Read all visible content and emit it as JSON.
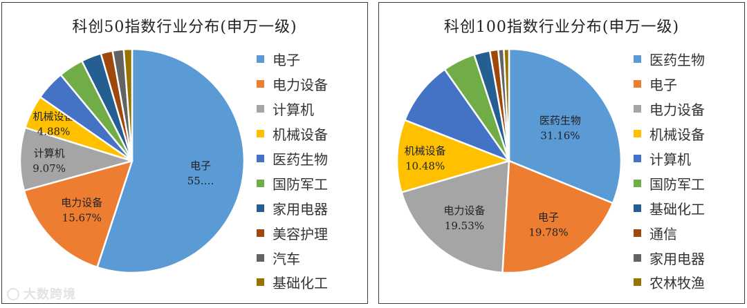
{
  "colors": [
    "#5B9BD5",
    "#ED7D31",
    "#A5A5A5",
    "#FFC000",
    "#4472C4",
    "#70AD47",
    "#255E91",
    "#9E480E",
    "#636363",
    "#997300"
  ],
  "chart_data": [
    {
      "type": "pie",
      "title": "科创50指数行业分布(申万一级)",
      "legend_position": "right",
      "slices": [
        {
          "name": "电子",
          "value": 55.0,
          "label": "电子",
          "value_label": "55.…"
        },
        {
          "name": "电力设备",
          "value": 15.67,
          "label": "电力设备",
          "value_label": "15.67%"
        },
        {
          "name": "计算机",
          "value": 9.07,
          "label": "计算机",
          "value_label": "9.07%"
        },
        {
          "name": "机械设备",
          "value": 4.88,
          "label": "机械设备",
          "value_label": "4.88%"
        },
        {
          "name": "医药生物",
          "value": 4.3
        },
        {
          "name": "国防军工",
          "value": 3.6
        },
        {
          "name": "家用电器",
          "value": 2.9
        },
        {
          "name": "美容护理",
          "value": 1.7
        },
        {
          "name": "汽车",
          "value": 1.6
        },
        {
          "name": "基础化工",
          "value": 1.2
        }
      ]
    },
    {
      "type": "pie",
      "title": "科创100指数行业分布(申万一级)",
      "legend_position": "right",
      "slices": [
        {
          "name": "医药生物",
          "value": 31.16,
          "label": "医药生物",
          "value_label": "31.16%"
        },
        {
          "name": "电子",
          "value": 19.78,
          "label": "电子",
          "value_label": "19.78%"
        },
        {
          "name": "电力设备",
          "value": 19.53,
          "label": "电力设备",
          "value_label": "19.53%"
        },
        {
          "name": "机械设备",
          "value": 10.48,
          "label": "机械设备",
          "value_label": "10.48%"
        },
        {
          "name": "计算机",
          "value": 9.3
        },
        {
          "name": "国防军工",
          "value": 4.7
        },
        {
          "name": "基础化工",
          "value": 2.3
        },
        {
          "name": "通信",
          "value": 1.2
        },
        {
          "name": "家用电器",
          "value": 0.8
        },
        {
          "name": "农林牧渔",
          "value": 0.75
        }
      ]
    }
  ],
  "watermark": "大数跨境"
}
